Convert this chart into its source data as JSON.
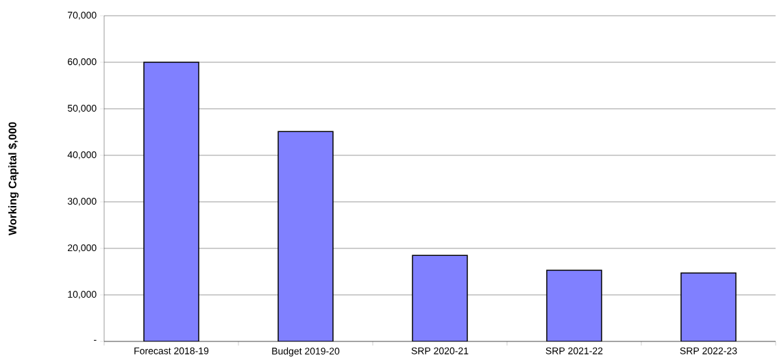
{
  "chart_data": {
    "type": "bar",
    "ylabel": "Working Capital $,000",
    "categories": [
      "Forecast 2018-19",
      "Budget 2019-20",
      "SRP 2020-21",
      "SRP 2021-22",
      "SRP 2022-23"
    ],
    "values": [
      60000,
      45100,
      18500,
      15300,
      14700
    ],
    "color": "#8080ff",
    "ylim": [
      0,
      70000
    ],
    "yticks": [
      {
        "value": 0,
        "label": "-"
      },
      {
        "value": 10000,
        "label": "10,000"
      },
      {
        "value": 20000,
        "label": "20,000"
      },
      {
        "value": 30000,
        "label": "30,000"
      },
      {
        "value": 40000,
        "label": "40,000"
      },
      {
        "value": 50000,
        "label": "50,000"
      },
      {
        "value": 60000,
        "label": "60,000"
      },
      {
        "value": 70000,
        "label": "70,000"
      }
    ],
    "grid": "y"
  }
}
